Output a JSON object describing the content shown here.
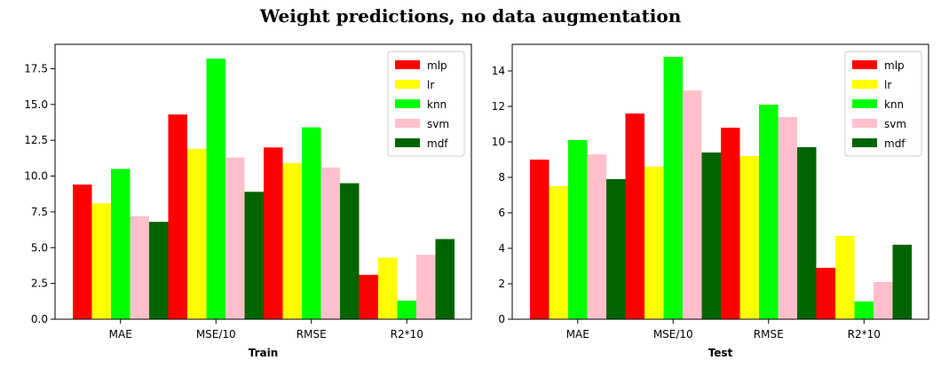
{
  "figure": {
    "title": "Weight predictions, no data augmentation"
  },
  "colors": {
    "mlp": "#ff0000",
    "lr": "#ffff00",
    "knn": "#00ff00",
    "svm": "#ffc0cb",
    "mdf": "#006400"
  },
  "chart_data": [
    {
      "type": "bar",
      "xlabel": "Train",
      "categories": [
        "MAE",
        "MSE/10",
        "RMSE",
        "R2*10"
      ],
      "ylim": [
        0,
        19.2
      ],
      "yticks": [
        0.0,
        2.5,
        5.0,
        7.5,
        10.0,
        12.5,
        15.0,
        17.5
      ],
      "ytick_labels": [
        "0.0",
        "2.5",
        "5.0",
        "7.5",
        "10.0",
        "12.5",
        "15.0",
        "17.5"
      ],
      "legend": "top-right",
      "series": [
        {
          "name": "mlp",
          "values": [
            9.4,
            14.3,
            12.0,
            3.1
          ]
        },
        {
          "name": "lr",
          "values": [
            8.1,
            11.9,
            10.9,
            4.3
          ]
        },
        {
          "name": "knn",
          "values": [
            10.5,
            18.2,
            13.4,
            1.3
          ]
        },
        {
          "name": "svm",
          "values": [
            7.2,
            11.3,
            10.6,
            4.5
          ]
        },
        {
          "name": "mdf",
          "values": [
            6.8,
            8.9,
            9.5,
            5.6
          ]
        }
      ]
    },
    {
      "type": "bar",
      "xlabel": "Test",
      "categories": [
        "MAE",
        "MSE/10",
        "RMSE",
        "R2*10"
      ],
      "ylim": [
        0,
        15.5
      ],
      "yticks": [
        0,
        2,
        4,
        6,
        8,
        10,
        12,
        14
      ],
      "ytick_labels": [
        "0",
        "2",
        "4",
        "6",
        "8",
        "10",
        "12",
        "14"
      ],
      "legend": "top-right",
      "series": [
        {
          "name": "mlp",
          "values": [
            9.0,
            11.6,
            10.8,
            2.9
          ]
        },
        {
          "name": "lr",
          "values": [
            7.5,
            8.6,
            9.2,
            4.7
          ]
        },
        {
          "name": "knn",
          "values": [
            10.1,
            14.8,
            12.1,
            1.0
          ]
        },
        {
          "name": "svm",
          "values": [
            9.3,
            12.9,
            11.4,
            2.1
          ]
        },
        {
          "name": "mdf",
          "values": [
            7.9,
            9.4,
            9.7,
            4.2
          ]
        }
      ]
    }
  ]
}
